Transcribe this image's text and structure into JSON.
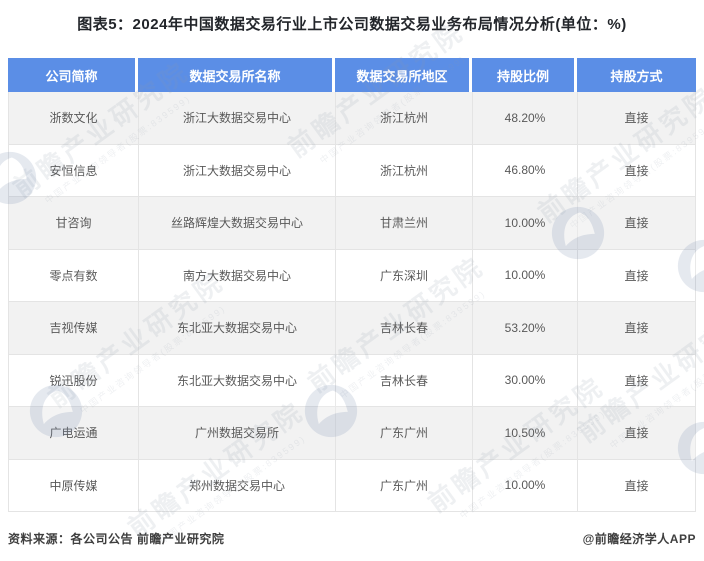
{
  "title": "图表5：2024年中国数据交易行业上市公司数据交易业务布局情况分析(单位：%)",
  "chart_data": {
    "type": "table",
    "title": "图表5：2024年中国数据交易行业上市公司数据交易业务布局情况分析(单位：%)",
    "columns": [
      "公司简称",
      "数据交易所名称",
      "数据交易所地区",
      "持股比例",
      "持股方式"
    ],
    "rows": [
      [
        "浙数文化",
        "浙江大数据交易中心",
        "浙江杭州",
        "48.20%",
        "直接"
      ],
      [
        "安恒信息",
        "浙江大数据交易中心",
        "浙江杭州",
        "46.80%",
        "直接"
      ],
      [
        "甘咨询",
        "丝路辉煌大数据交易中心",
        "甘肃兰州",
        "10.00%",
        "直接"
      ],
      [
        "零点有数",
        "南方大数据交易中心",
        "广东深圳",
        "10.00%",
        "直接"
      ],
      [
        "吉视传媒",
        "东北亚大数据交易中心",
        "吉林长春",
        "53.20%",
        "直接"
      ],
      [
        "锐迅股份",
        "东北亚大数据交易中心",
        "吉林长春",
        "30.00%",
        "直接"
      ],
      [
        "广电运通",
        "广州数据交易所",
        "广东广州",
        "10.50%",
        "直接"
      ],
      [
        "中原传媒",
        "郑州数据交易中心",
        "广东广州",
        "10.00%",
        "直接"
      ]
    ]
  },
  "footer": {
    "source": "资料来源：各公司公告 前瞻产业研究院",
    "credit": "@前瞻经济学人APP"
  },
  "watermark": {
    "brand": "前瞻产业研究院",
    "tagline": "中国产业咨询领导者(股票:839599)"
  },
  "colors": {
    "header_bg": "#5B8EE6",
    "header_text": "#FFFFFF",
    "row_alt_bg": "#F2F2F2",
    "border": "#E4E4E4",
    "cell_text": "#595959",
    "title_text": "#22252A",
    "footer_text": "#3F3F3F",
    "watermark": "#8E99A8"
  }
}
